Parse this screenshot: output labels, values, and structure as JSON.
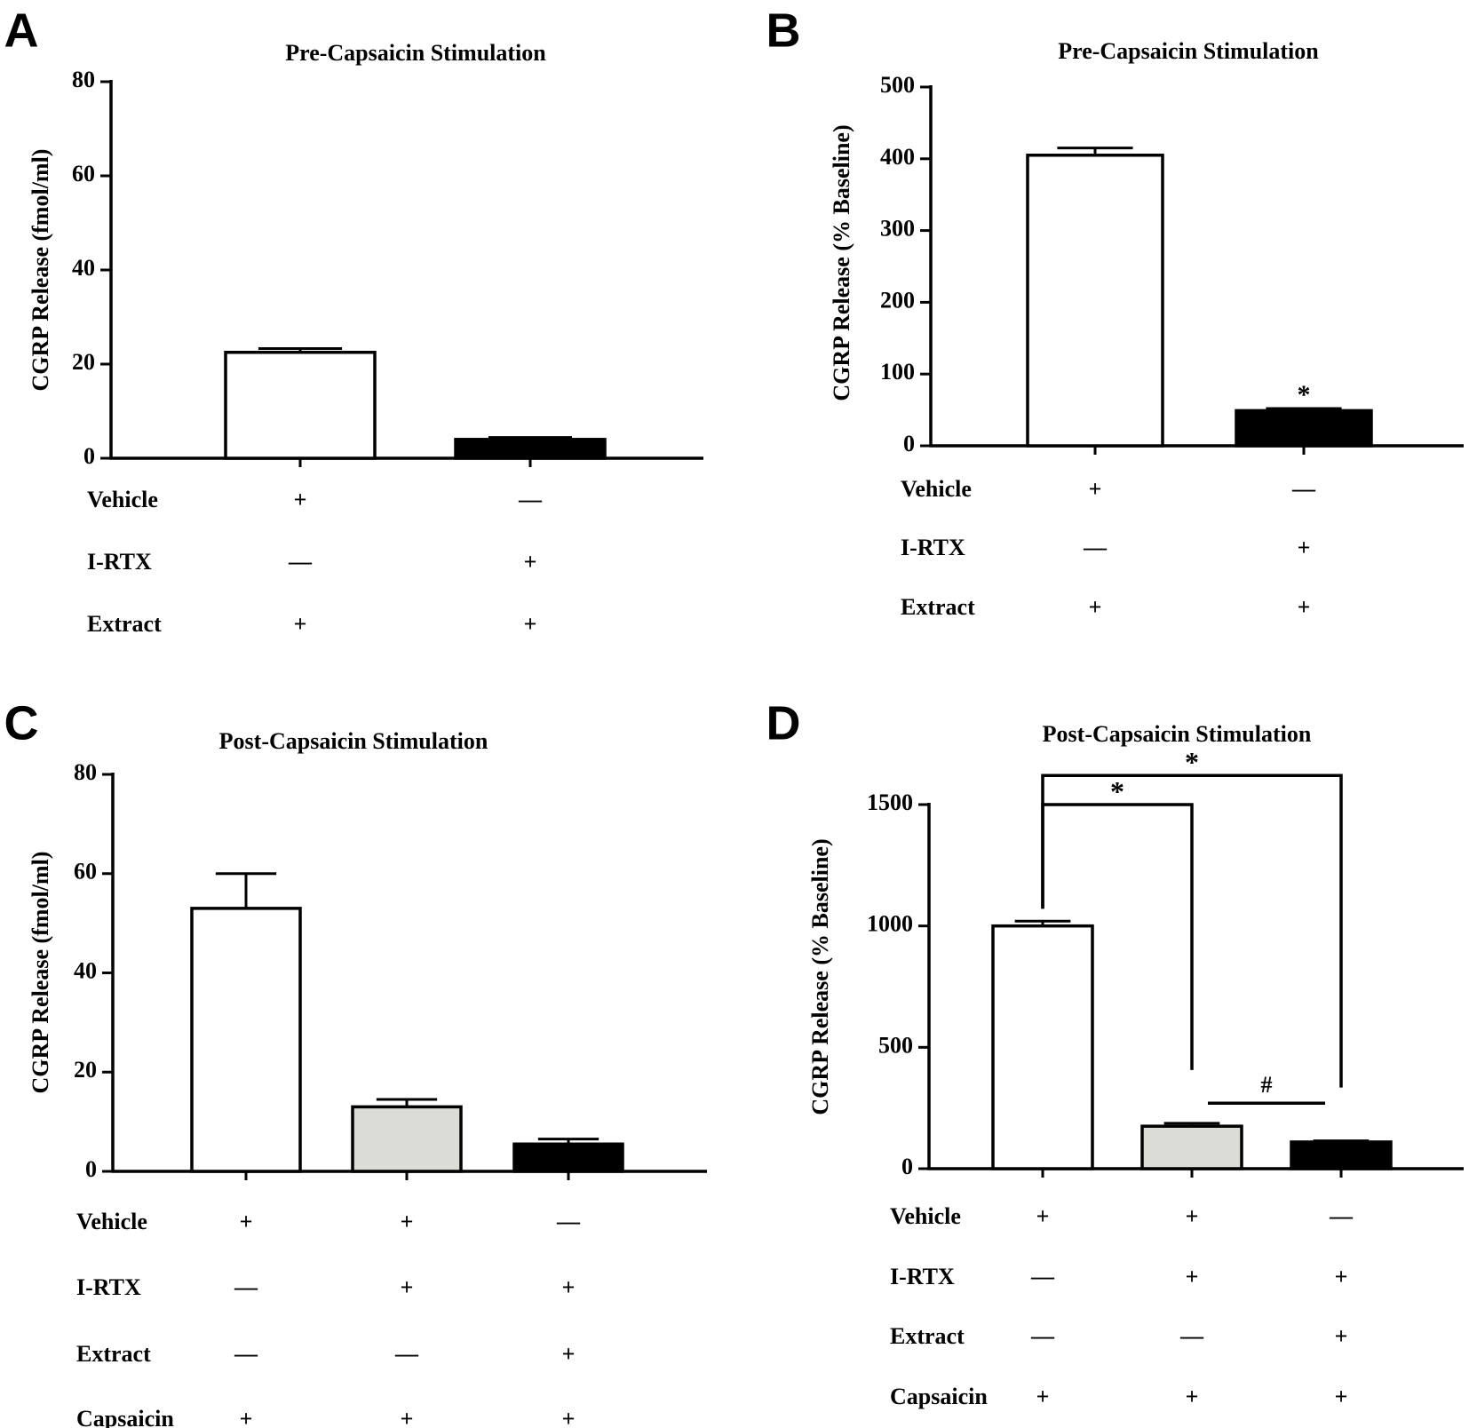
{
  "figure": {
    "colors": {
      "ink": "#000000",
      "white": "#ffffff",
      "grey": "#dcdcd7",
      "black": "#000000"
    }
  },
  "chart_data": [
    {
      "panel": "A",
      "type": "bar",
      "title": "Pre-Capsaicin Stimulation",
      "ylabel": "CGRP Release (fmol/ml)",
      "xlabel": "",
      "ylim": [
        0,
        80
      ],
      "yticks": [
        0,
        20,
        40,
        60,
        80
      ],
      "ytick_labels": [
        "0",
        "20",
        "40",
        "60",
        "80"
      ],
      "categories": [
        "Vehicle + Extract",
        "I-RTX + Extract"
      ],
      "values": [
        22.5,
        4
      ],
      "errors": [
        0.8,
        0.4
      ],
      "bar_fills": [
        "white",
        "black"
      ],
      "annotations": [],
      "conditions": [
        {
          "label": "Vehicle",
          "marks": [
            "+",
            "—"
          ]
        },
        {
          "label": "I-RTX",
          "marks": [
            "—",
            "+"
          ]
        },
        {
          "label": "Extract",
          "marks": [
            "+",
            "+"
          ]
        }
      ]
    },
    {
      "panel": "B",
      "type": "bar",
      "title": "Pre-Capsaicin Stimulation",
      "ylabel": "CGRP Release (% Baseline)",
      "xlabel": "",
      "ylim": [
        0,
        500
      ],
      "yticks": [
        0,
        100,
        200,
        300,
        400,
        500
      ],
      "ytick_labels": [
        "0",
        "100",
        "200",
        "300",
        "400",
        "500"
      ],
      "categories": [
        "Vehicle + Extract",
        "I-RTX + Extract"
      ],
      "values": [
        405,
        49
      ],
      "errors": [
        10,
        3
      ],
      "bar_fills": [
        "white",
        "black"
      ],
      "annotations": [
        {
          "text": "*",
          "bar": 1
        }
      ],
      "conditions": [
        {
          "label": "Vehicle",
          "marks": [
            "+",
            "—"
          ]
        },
        {
          "label": "I-RTX",
          "marks": [
            "—",
            "+"
          ]
        },
        {
          "label": "Extract",
          "marks": [
            "+",
            "+"
          ]
        }
      ]
    },
    {
      "panel": "C",
      "type": "bar",
      "title": "Post-Capsaicin Stimulation",
      "ylabel": "CGRP Release (fmol/ml)",
      "xlabel": "",
      "ylim": [
        0,
        80
      ],
      "yticks": [
        0,
        20,
        40,
        60,
        80
      ],
      "ytick_labels": [
        "0",
        "20",
        "40",
        "60",
        "80"
      ],
      "categories": [
        "Vehicle + Capsaicin",
        "Vehicle + I-RTX + Capsaicin",
        "I-RTX + Extract + Capsaicin"
      ],
      "values": [
        53,
        13,
        5.5
      ],
      "errors": [
        7,
        1.5,
        1
      ],
      "bar_fills": [
        "white",
        "grey",
        "black"
      ],
      "annotations": [],
      "conditions": [
        {
          "label": "Vehicle",
          "marks": [
            "+",
            "+",
            "—"
          ]
        },
        {
          "label": "I-RTX",
          "marks": [
            "—",
            "+",
            "+"
          ]
        },
        {
          "label": "Extract",
          "marks": [
            "—",
            "—",
            "+"
          ]
        },
        {
          "label": "Capsaicin",
          "marks": [
            "+",
            "+",
            "+"
          ]
        }
      ]
    },
    {
      "panel": "D",
      "type": "bar",
      "title": "Post-Capsaicin Stimulation",
      "ylabel": "CGRP Release (% Baseline)",
      "xlabel": "",
      "ylim": [
        0,
        1500
      ],
      "yticks": [
        0,
        500,
        1000,
        1500
      ],
      "ytick_labels": [
        "0",
        "500",
        "1000",
        "1500"
      ],
      "categories": [
        "Vehicle + Capsaicin",
        "Vehicle + I-RTX + Capsaicin",
        "I-RTX + Extract + Capsaicin"
      ],
      "values": [
        1000,
        175,
        110
      ],
      "errors": [
        20,
        12,
        5
      ],
      "bar_fills": [
        "white",
        "grey",
        "black"
      ],
      "annotations": [
        {
          "text": "*",
          "type": "bracket",
          "from_bar": 0,
          "to_bar": 2,
          "level": 1620
        },
        {
          "text": "*",
          "type": "bracket",
          "from_bar": 0,
          "to_bar": 1,
          "level": 1500
        },
        {
          "text": "#",
          "type": "line",
          "from_bar": 1,
          "to_bar": 2,
          "level": 270
        }
      ],
      "conditions": [
        {
          "label": "Vehicle",
          "marks": [
            "+",
            "+",
            "—"
          ]
        },
        {
          "label": "I-RTX",
          "marks": [
            "—",
            "+",
            "+"
          ]
        },
        {
          "label": "Extract",
          "marks": [
            "—",
            "—",
            "+"
          ]
        },
        {
          "label": "Capsaicin",
          "marks": [
            "+",
            "+",
            "+"
          ]
        }
      ]
    }
  ]
}
